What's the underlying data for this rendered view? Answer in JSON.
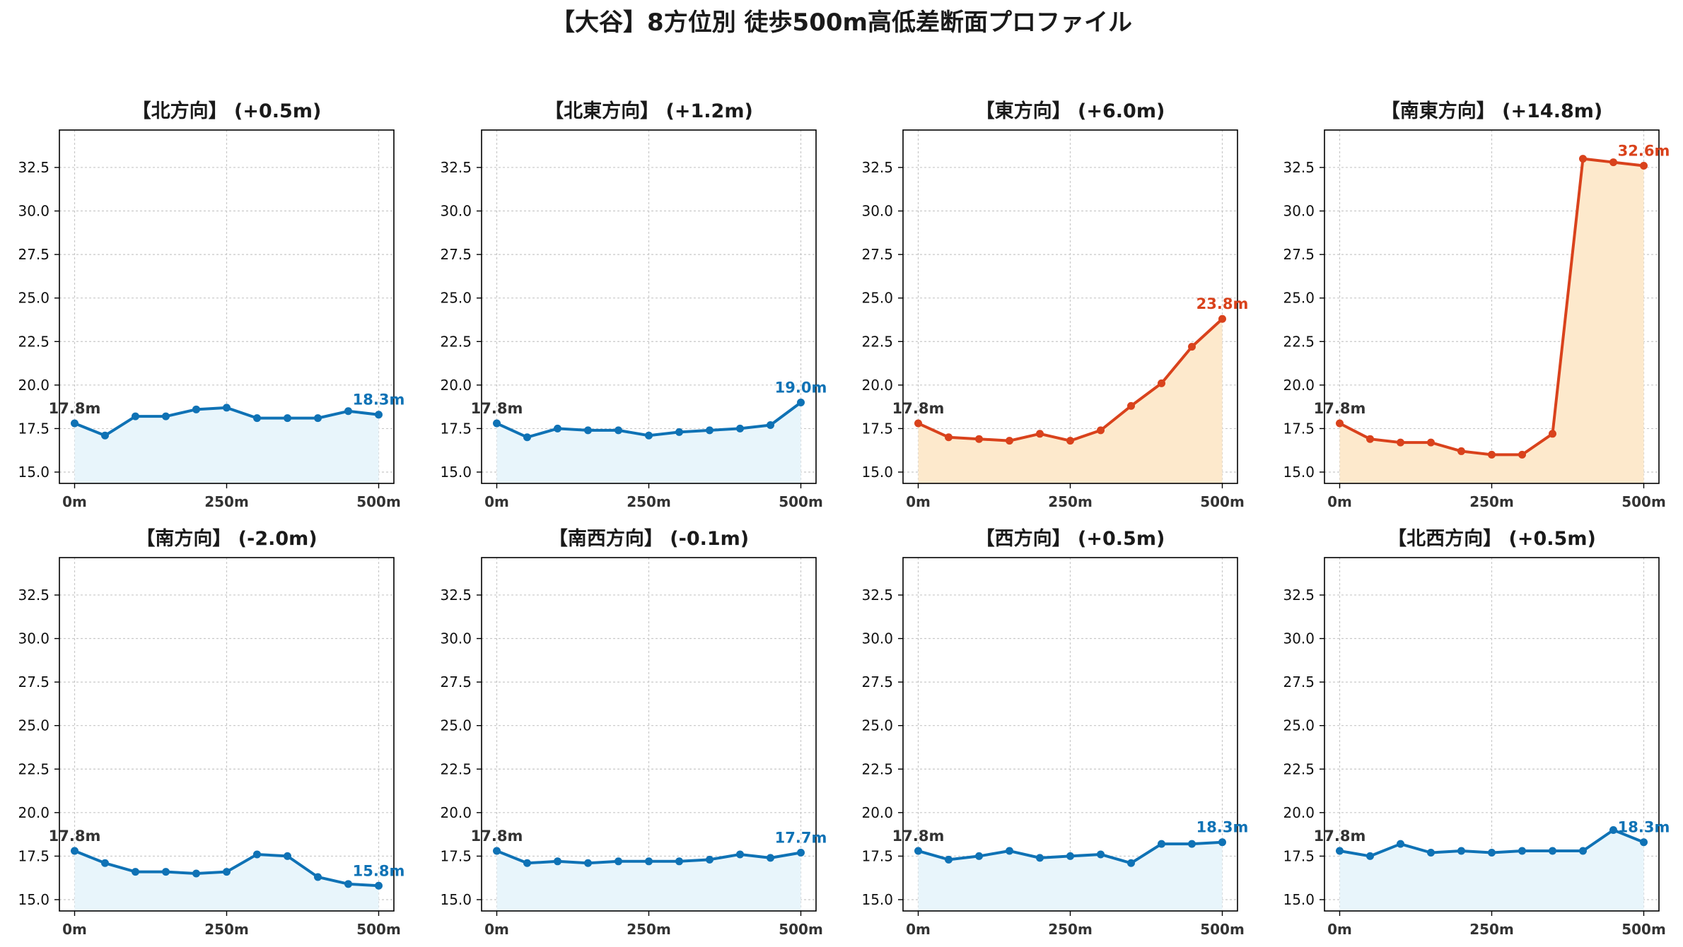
{
  "title": "【大谷】8方位別 徒歩500m高低差断面プロファイル",
  "colors": {
    "up": "#d9421c",
    "up_fill": "#fde9cc",
    "flat": "#0f72b5",
    "flat_fill": "#e8f5fb",
    "start_label": "#333333",
    "grid": "#c8c8c8",
    "axis": "#000000"
  },
  "chart_data": [
    {
      "type": "line",
      "title": "【北方向】 (+0.5m)",
      "trend": "flat",
      "x": [
        0,
        50,
        100,
        150,
        200,
        250,
        300,
        350,
        400,
        450,
        500
      ],
      "y": [
        17.8,
        17.1,
        18.2,
        18.2,
        18.6,
        18.7,
        18.1,
        18.1,
        18.1,
        18.5,
        18.3
      ],
      "start_label": "17.8m",
      "end_label": "18.3m",
      "xticks": [
        0,
        250,
        500
      ],
      "xtick_labels": [
        "0m",
        "250m",
        "500m"
      ],
      "yticks": [
        15.0,
        17.5,
        20.0,
        22.5,
        25.0,
        27.5,
        30.0,
        32.5
      ],
      "ytick_labels": [
        "15.0",
        "17.5",
        "20.0",
        "22.5",
        "25.0",
        "27.5",
        "30.0",
        "32.5"
      ],
      "xlim": [
        -25,
        525
      ],
      "ylim": [
        14.35,
        34.65
      ],
      "grid": true
    },
    {
      "type": "line",
      "title": "【北東方向】 (+1.2m)",
      "trend": "flat",
      "x": [
        0,
        50,
        100,
        150,
        200,
        250,
        300,
        350,
        400,
        450,
        500
      ],
      "y": [
        17.8,
        17.0,
        17.5,
        17.4,
        17.4,
        17.1,
        17.3,
        17.4,
        17.5,
        17.7,
        19.0
      ],
      "start_label": "17.8m",
      "end_label": "19.0m",
      "xticks": [
        0,
        250,
        500
      ],
      "xtick_labels": [
        "0m",
        "250m",
        "500m"
      ],
      "yticks": [
        15.0,
        17.5,
        20.0,
        22.5,
        25.0,
        27.5,
        30.0,
        32.5
      ],
      "ytick_labels": [
        "15.0",
        "17.5",
        "20.0",
        "22.5",
        "25.0",
        "27.5",
        "30.0",
        "32.5"
      ],
      "xlim": [
        -25,
        525
      ],
      "ylim": [
        14.35,
        34.65
      ],
      "grid": true
    },
    {
      "type": "line",
      "title": "【東方向】 (+6.0m)",
      "trend": "up",
      "x": [
        0,
        50,
        100,
        150,
        200,
        250,
        300,
        350,
        400,
        450,
        500
      ],
      "y": [
        17.8,
        17.0,
        16.9,
        16.8,
        17.2,
        16.8,
        17.4,
        18.8,
        20.1,
        22.2,
        23.8
      ],
      "start_label": "17.8m",
      "end_label": "23.8m",
      "xticks": [
        0,
        250,
        500
      ],
      "xtick_labels": [
        "0m",
        "250m",
        "500m"
      ],
      "yticks": [
        15.0,
        17.5,
        20.0,
        22.5,
        25.0,
        27.5,
        30.0,
        32.5
      ],
      "ytick_labels": [
        "15.0",
        "17.5",
        "20.0",
        "22.5",
        "25.0",
        "27.5",
        "30.0",
        "32.5"
      ],
      "xlim": [
        -25,
        525
      ],
      "ylim": [
        14.35,
        34.65
      ],
      "grid": true
    },
    {
      "type": "line",
      "title": "【南東方向】 (+14.8m)",
      "trend": "up",
      "x": [
        0,
        50,
        100,
        150,
        200,
        250,
        300,
        350,
        400,
        450,
        500
      ],
      "y": [
        17.8,
        16.9,
        16.7,
        16.7,
        16.2,
        16.0,
        16.0,
        17.2,
        33.0,
        32.8,
        32.6
      ],
      "start_label": "17.8m",
      "end_label": "32.6m",
      "xticks": [
        0,
        250,
        500
      ],
      "xtick_labels": [
        "0m",
        "250m",
        "500m"
      ],
      "yticks": [
        15.0,
        17.5,
        20.0,
        22.5,
        25.0,
        27.5,
        30.0,
        32.5
      ],
      "ytick_labels": [
        "15.0",
        "17.5",
        "20.0",
        "22.5",
        "25.0",
        "27.5",
        "30.0",
        "32.5"
      ],
      "xlim": [
        -25,
        525
      ],
      "ylim": [
        14.35,
        34.65
      ],
      "grid": true
    },
    {
      "type": "line",
      "title": "【南方向】 (-2.0m)",
      "trend": "flat",
      "x": [
        0,
        50,
        100,
        150,
        200,
        250,
        300,
        350,
        400,
        450,
        500
      ],
      "y": [
        17.8,
        17.1,
        16.6,
        16.6,
        16.5,
        16.6,
        17.6,
        17.5,
        16.3,
        15.9,
        15.8
      ],
      "start_label": "17.8m",
      "end_label": "15.8m",
      "xticks": [
        0,
        250,
        500
      ],
      "xtick_labels": [
        "0m",
        "250m",
        "500m"
      ],
      "yticks": [
        15.0,
        17.5,
        20.0,
        22.5,
        25.0,
        27.5,
        30.0,
        32.5
      ],
      "ytick_labels": [
        "15.0",
        "17.5",
        "20.0",
        "22.5",
        "25.0",
        "27.5",
        "30.0",
        "32.5"
      ],
      "xlim": [
        -25,
        525
      ],
      "ylim": [
        14.35,
        34.65
      ],
      "grid": true
    },
    {
      "type": "line",
      "title": "【南西方向】 (-0.1m)",
      "trend": "flat",
      "x": [
        0,
        50,
        100,
        150,
        200,
        250,
        300,
        350,
        400,
        450,
        500
      ],
      "y": [
        17.8,
        17.1,
        17.2,
        17.1,
        17.2,
        17.2,
        17.2,
        17.3,
        17.6,
        17.4,
        17.7
      ],
      "start_label": "17.8m",
      "end_label": "17.7m",
      "xticks": [
        0,
        250,
        500
      ],
      "xtick_labels": [
        "0m",
        "250m",
        "500m"
      ],
      "yticks": [
        15.0,
        17.5,
        20.0,
        22.5,
        25.0,
        27.5,
        30.0,
        32.5
      ],
      "ytick_labels": [
        "15.0",
        "17.5",
        "20.0",
        "22.5",
        "25.0",
        "27.5",
        "30.0",
        "32.5"
      ],
      "xlim": [
        -25,
        525
      ],
      "ylim": [
        14.35,
        34.65
      ],
      "grid": true
    },
    {
      "type": "line",
      "title": "【西方向】 (+0.5m)",
      "trend": "flat",
      "x": [
        0,
        50,
        100,
        150,
        200,
        250,
        300,
        350,
        400,
        450,
        500
      ],
      "y": [
        17.8,
        17.3,
        17.5,
        17.8,
        17.4,
        17.5,
        17.6,
        17.1,
        18.2,
        18.2,
        18.3
      ],
      "start_label": "17.8m",
      "end_label": "18.3m",
      "xticks": [
        0,
        250,
        500
      ],
      "xtick_labels": [
        "0m",
        "250m",
        "500m"
      ],
      "yticks": [
        15.0,
        17.5,
        20.0,
        22.5,
        25.0,
        27.5,
        30.0,
        32.5
      ],
      "ytick_labels": [
        "15.0",
        "17.5",
        "20.0",
        "22.5",
        "25.0",
        "27.5",
        "30.0",
        "32.5"
      ],
      "xlim": [
        -25,
        525
      ],
      "ylim": [
        14.35,
        34.65
      ],
      "grid": true
    },
    {
      "type": "line",
      "title": "【北西方向】 (+0.5m)",
      "trend": "flat",
      "x": [
        0,
        50,
        100,
        150,
        200,
        250,
        300,
        350,
        400,
        450,
        500
      ],
      "y": [
        17.8,
        17.5,
        18.2,
        17.7,
        17.8,
        17.7,
        17.8,
        17.8,
        17.8,
        19.0,
        18.3
      ],
      "start_label": "17.8m",
      "end_label": "18.3m",
      "xticks": [
        0,
        250,
        500
      ],
      "xtick_labels": [
        "0m",
        "250m",
        "500m"
      ],
      "yticks": [
        15.0,
        17.5,
        20.0,
        22.5,
        25.0,
        27.5,
        30.0,
        32.5
      ],
      "ytick_labels": [
        "15.0",
        "17.5",
        "20.0",
        "22.5",
        "25.0",
        "27.5",
        "30.0",
        "32.5"
      ],
      "xlim": [
        -25,
        525
      ],
      "ylim": [
        14.35,
        34.65
      ],
      "grid": true
    }
  ]
}
